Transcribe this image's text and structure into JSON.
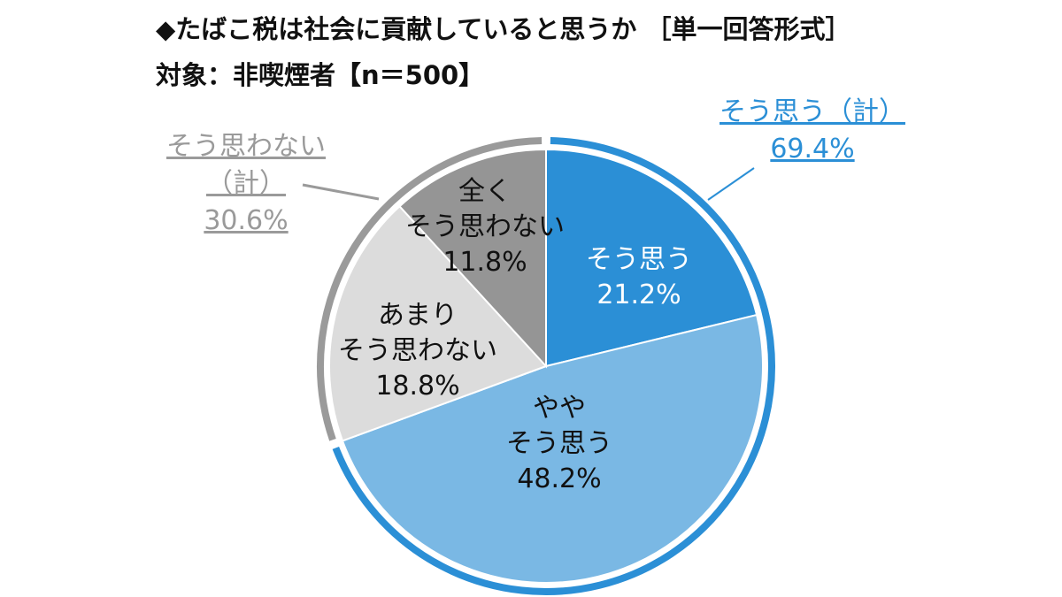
{
  "title": "◆たばこ税は社会に貢献していると思うか ［単一回答形式］",
  "subtitle": "対象：非喫煙者【n＝500】",
  "colors": {
    "slice_agree": "#2b8fd6",
    "slice_somewhat_agree": "#7ab8e4",
    "slice_somewhat_disagree": "#dcdcdc",
    "slice_disagree": "#959595",
    "ring_agree": "#2b8fd6",
    "ring_disagree": "#9a9a9a",
    "label_agree_total": "#2b8fd6",
    "label_disagree_total": "#9a9a9a"
  },
  "chart_data": {
    "type": "pie",
    "title": "◆たばこ税は社会に貢献していると思うか ［単一回答形式］",
    "subtitle": "対象：非喫煙者【n＝500】",
    "slices": [
      {
        "label_lines": [
          "そう思う",
          "21.2%"
        ],
        "value": 21.2
      },
      {
        "label_lines": [
          "やや",
          "そう思う",
          "48.2%"
        ],
        "value": 48.2
      },
      {
        "label_lines": [
          "あまり",
          "そう思わない",
          "18.8%"
        ],
        "value": 18.8
      },
      {
        "label_lines": [
          "全く",
          "そう思わない",
          "11.8%"
        ],
        "value": 11.8
      }
    ],
    "groups": [
      {
        "label_lines": [
          "そう思う（計）",
          "69.4%"
        ],
        "value": 69.4
      },
      {
        "label_lines": [
          "そう思わない",
          "（計）",
          "30.6%"
        ],
        "value": 30.6
      }
    ]
  }
}
